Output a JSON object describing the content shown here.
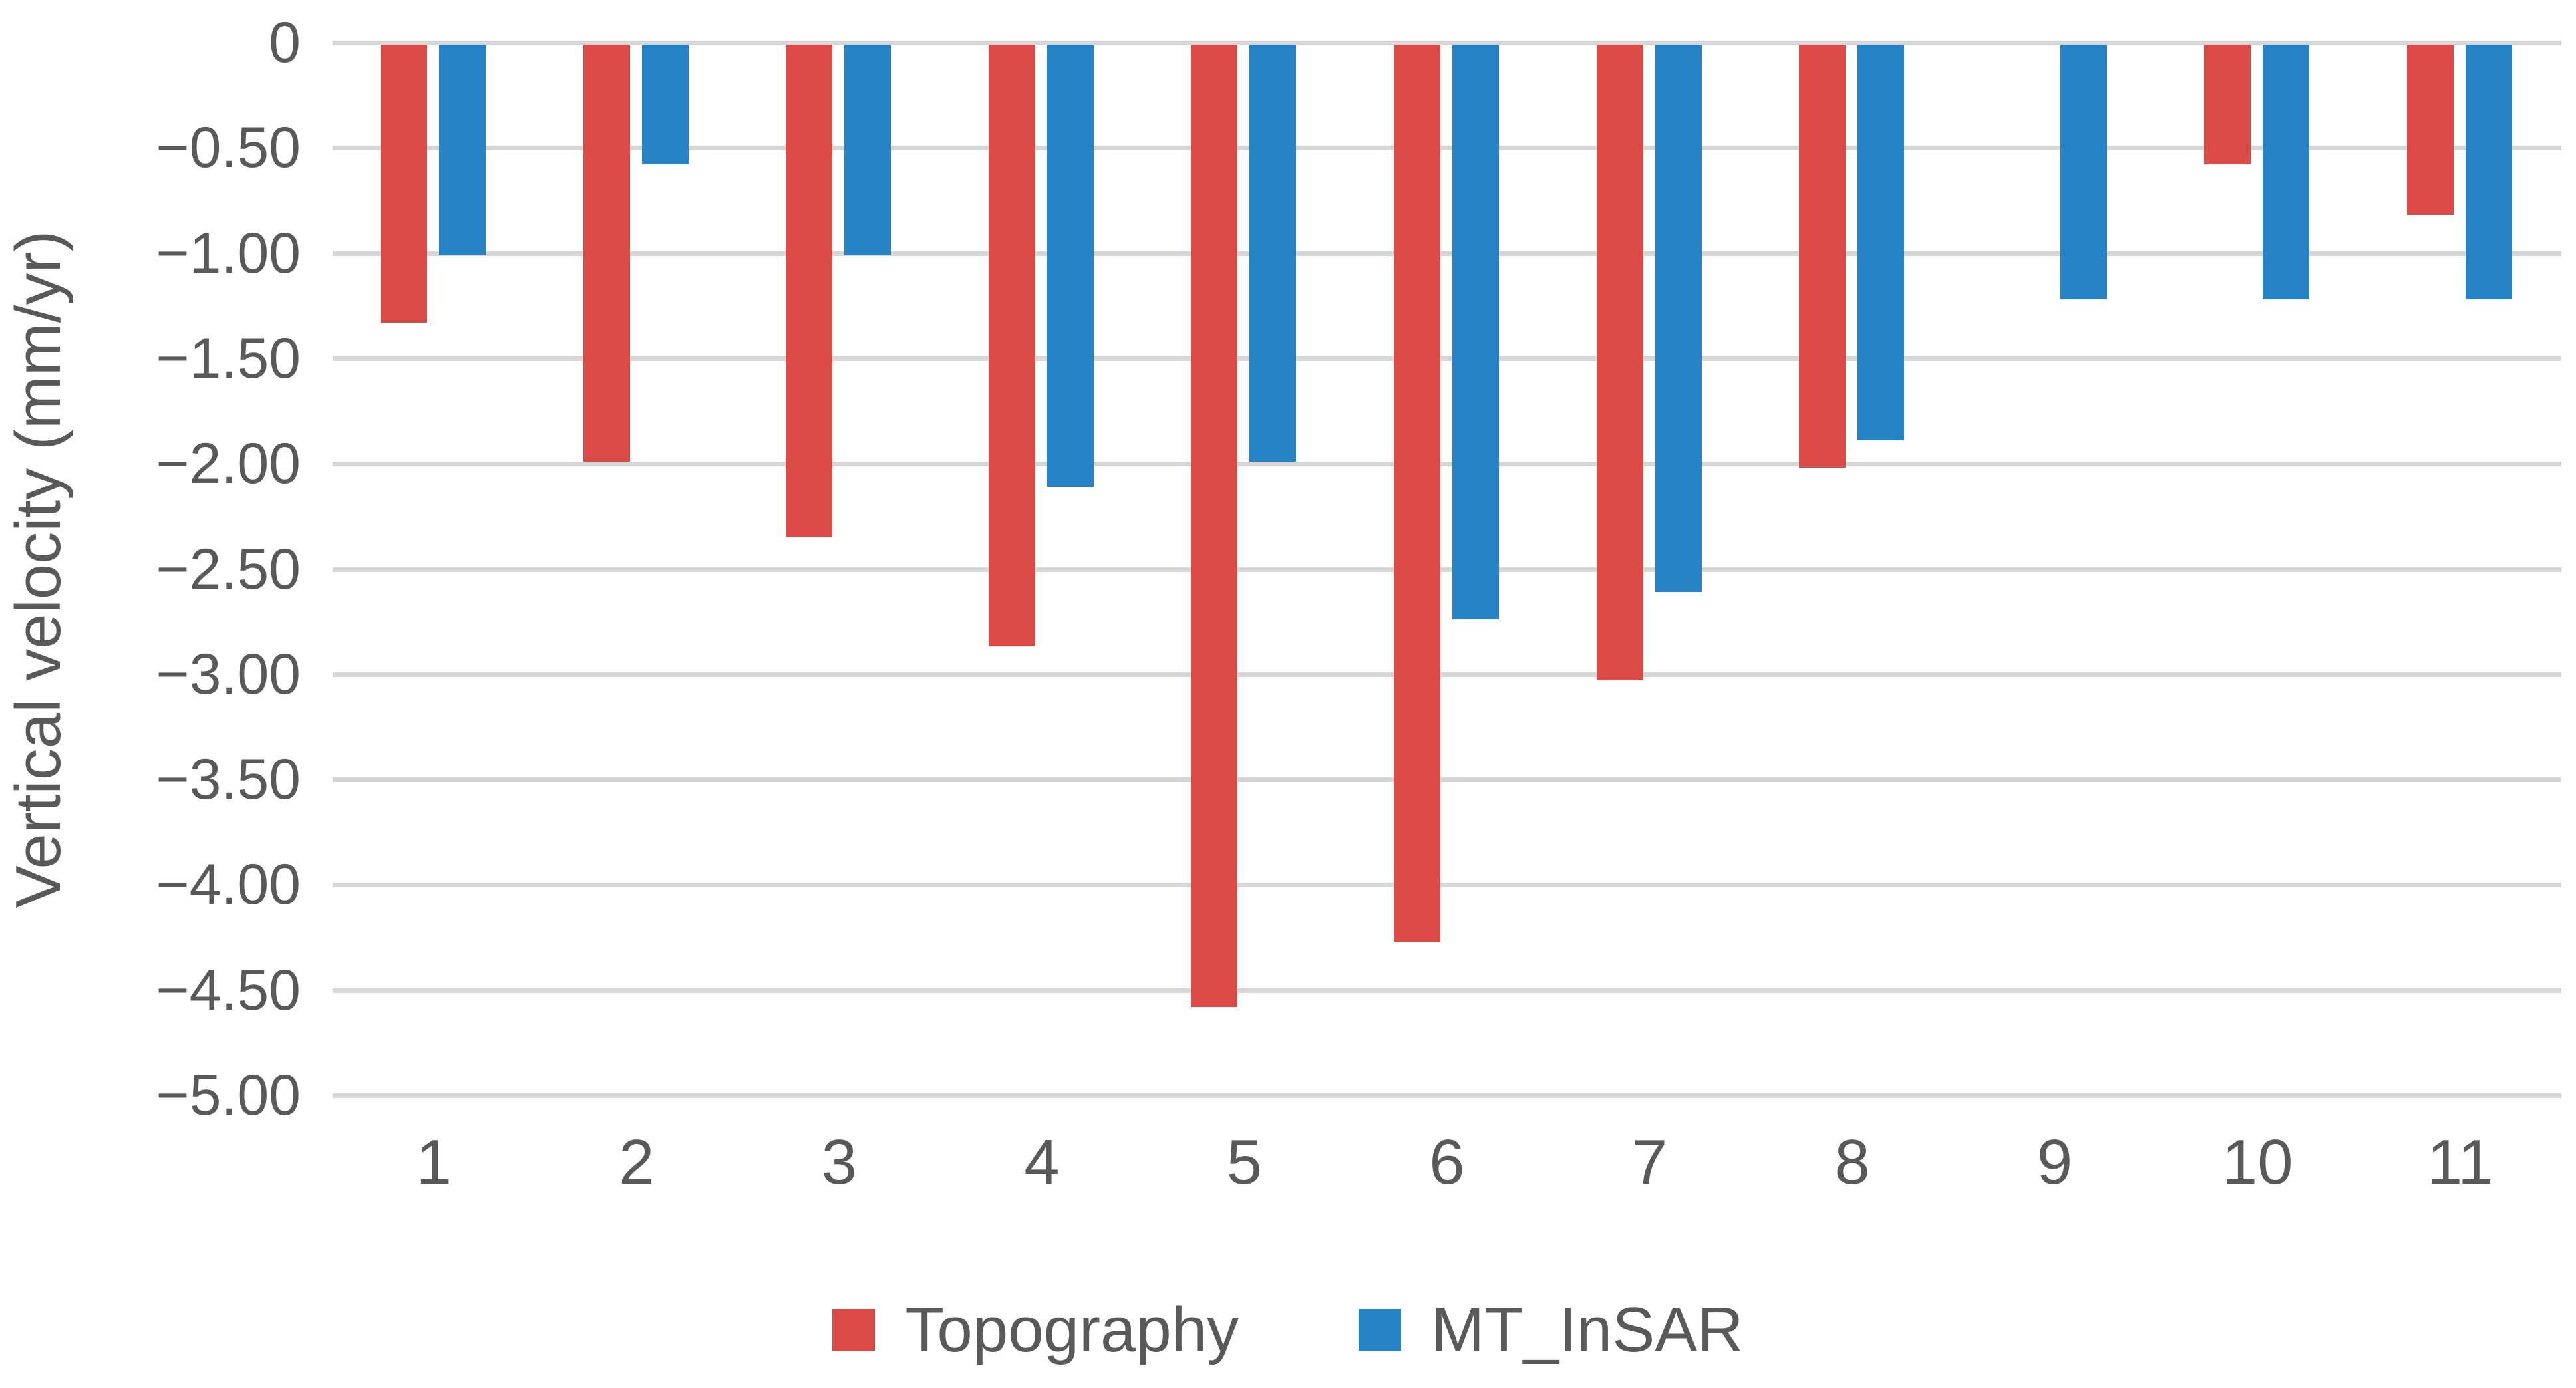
{
  "chart_data": {
    "type": "bar",
    "title": "",
    "xlabel": "",
    "ylabel": "Vertical velocity (mm/yr)",
    "categories": [
      "1",
      "2",
      "3",
      "4",
      "5",
      "6",
      "7",
      "8",
      "9",
      "10",
      "11"
    ],
    "series": [
      {
        "name": "Topography",
        "color": "#db4a45",
        "values": [
          -1.32,
          -1.98,
          -2.34,
          -2.86,
          -4.57,
          -4.26,
          -3.02,
          -2.01,
          null,
          -0.57,
          -0.81
        ]
      },
      {
        "name": "MT_InSAR",
        "color": "#2583c6",
        "values": [
          -1.0,
          -0.57,
          -1.0,
          -2.1,
          -1.98,
          -2.73,
          -2.6,
          -1.88,
          -1.21,
          -1.21,
          -1.21
        ]
      }
    ],
    "ylim": [
      -5.0,
      0
    ],
    "ytick_step": 0.5,
    "ytick_labels": [
      "0",
      "−0.50",
      "−1.00",
      "−1.50",
      "−2.00",
      "−2.50",
      "−3.00",
      "−3.50",
      "−4.00",
      "−4.50",
      "−5.00"
    ],
    "grid": true,
    "gridline_color": "#d6d6d6",
    "text_color": "#595959",
    "legend_position": "bottom",
    "legend": [
      {
        "label": "Topography",
        "color": "#db4a45"
      },
      {
        "label": "MT_InSAR",
        "color": "#2583c6"
      }
    ]
  }
}
